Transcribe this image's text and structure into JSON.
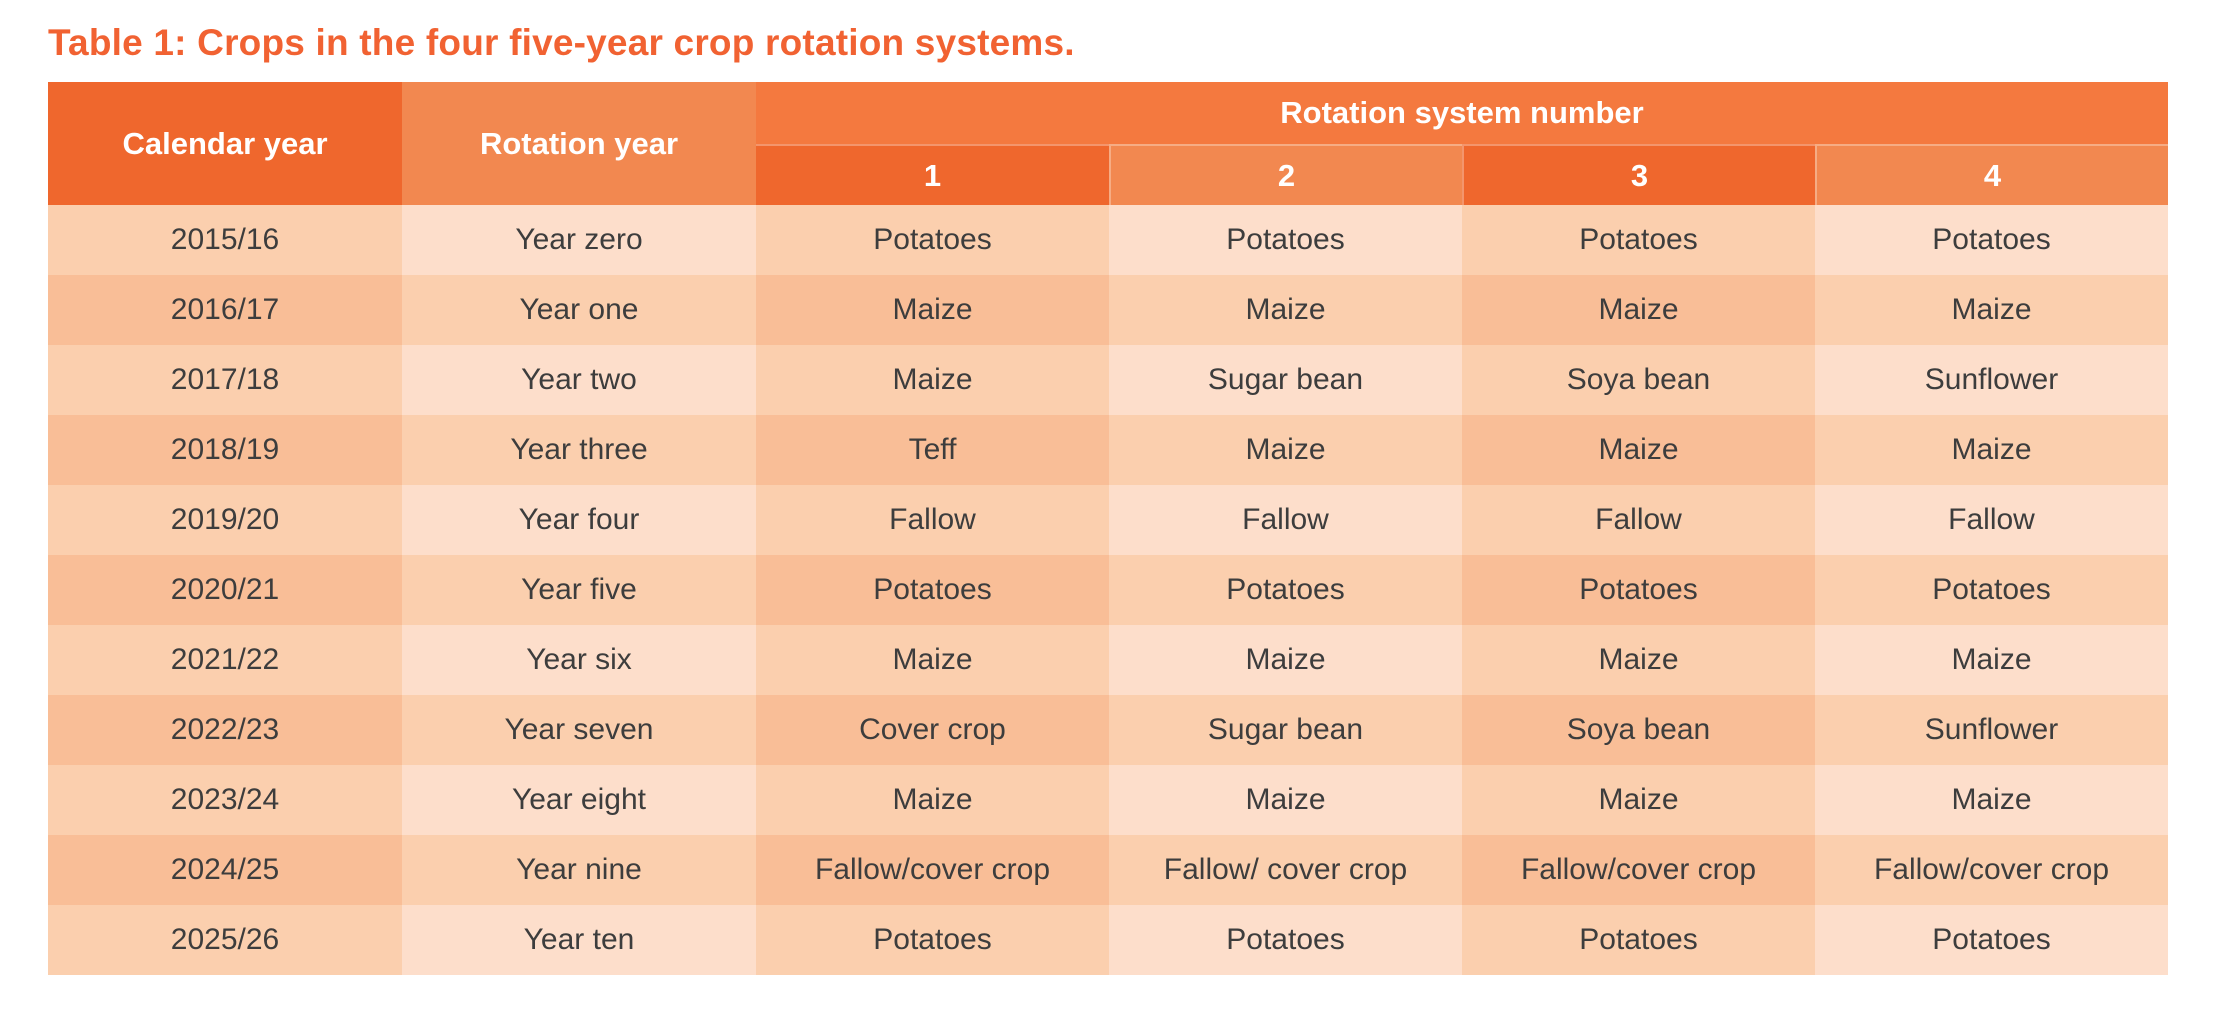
{
  "page": {
    "title": "Table 1: Crops in the four five-year crop rotation systems."
  },
  "colors": {
    "title": "#F16232",
    "header_dark": "#EF672D",
    "header_band": "#F4793F",
    "header_light": "#F28850",
    "cell_medium": "#FBCFAE",
    "cell_light": "#FDDECB",
    "cell_dark": "#F9BE97",
    "text": "#3D3D3D"
  },
  "table": {
    "headers": {
      "calendar_year": "Calendar year",
      "rotation_year": "Rotation year",
      "rotation_system_group": "Rotation system number",
      "system_numbers": [
        "1",
        "2",
        "3",
        "4"
      ]
    },
    "rows": [
      {
        "calendar_year": "2015/16",
        "rotation_year": "Year zero",
        "systems": [
          "Potatoes",
          "Potatoes",
          "Potatoes",
          "Potatoes"
        ]
      },
      {
        "calendar_year": "2016/17",
        "rotation_year": "Year one",
        "systems": [
          "Maize",
          "Maize",
          "Maize",
          "Maize"
        ]
      },
      {
        "calendar_year": "2017/18",
        "rotation_year": "Year two",
        "systems": [
          "Maize",
          "Sugar bean",
          "Soya bean",
          "Sunflower"
        ]
      },
      {
        "calendar_year": "2018/19",
        "rotation_year": "Year three",
        "systems": [
          "Teff",
          "Maize",
          "Maize",
          "Maize"
        ]
      },
      {
        "calendar_year": "2019/20",
        "rotation_year": "Year four",
        "systems": [
          "Fallow",
          "Fallow",
          "Fallow",
          "Fallow"
        ]
      },
      {
        "calendar_year": "2020/21",
        "rotation_year": "Year five",
        "systems": [
          "Potatoes",
          "Potatoes",
          "Potatoes",
          "Potatoes"
        ]
      },
      {
        "calendar_year": "2021/22",
        "rotation_year": "Year six",
        "systems": [
          "Maize",
          "Maize",
          "Maize",
          "Maize"
        ]
      },
      {
        "calendar_year": "2022/23",
        "rotation_year": "Year seven",
        "systems": [
          "Cover crop",
          "Sugar bean",
          "Soya bean",
          "Sunflower"
        ]
      },
      {
        "calendar_year": "2023/24",
        "rotation_year": "Year eight",
        "systems": [
          "Maize",
          "Maize",
          "Maize",
          "Maize"
        ]
      },
      {
        "calendar_year": "2024/25",
        "rotation_year": "Year nine",
        "systems": [
          "Fallow/cover crop",
          "Fallow/ cover crop",
          "Fallow/cover crop",
          "Fallow/cover crop"
        ]
      },
      {
        "calendar_year": "2025/26",
        "rotation_year": "Year ten",
        "systems": [
          "Potatoes",
          "Potatoes",
          "Potatoes",
          "Potatoes"
        ]
      }
    ]
  }
}
